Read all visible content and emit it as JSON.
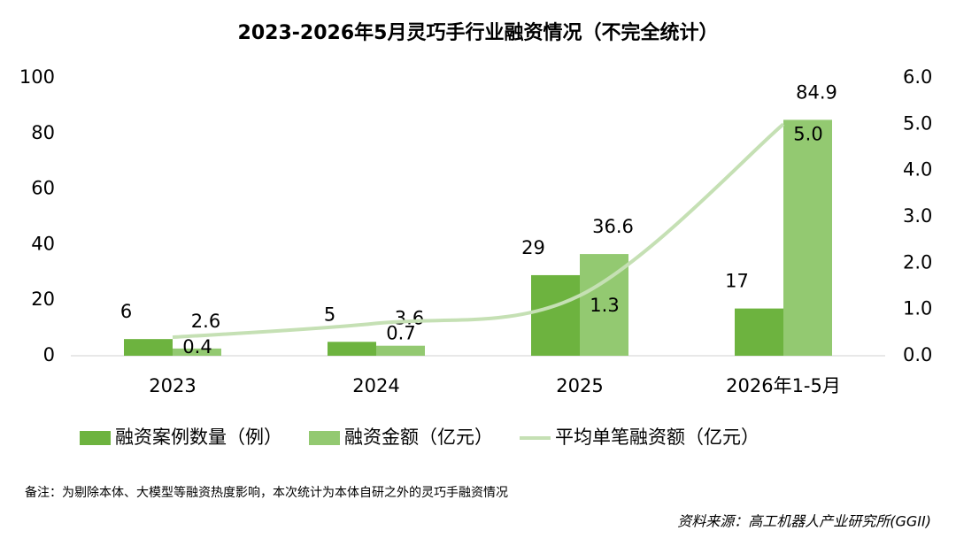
{
  "chart_data": {
    "type": "bar-line",
    "title": "2023-2026年5月灵巧手行业融资情况（不完全统计）",
    "categories": [
      "2023",
      "2024",
      "2025",
      "2026年1-5月"
    ],
    "series": [
      {
        "name": "融资案例数量（例）",
        "type": "bar",
        "color": "#6db33f",
        "values": [
          6,
          5,
          29,
          17
        ]
      },
      {
        "name": "融资金额（亿元）",
        "type": "bar",
        "color": "#93c971",
        "values": [
          2.6,
          3.6,
          36.6,
          84.9
        ]
      },
      {
        "name": "平均单笔融资额（亿元）",
        "type": "line",
        "axis": "y2",
        "color": "#c5e0b4",
        "values": [
          0.4,
          0.7,
          1.3,
          5.0
        ],
        "value_labels": [
          "0.4",
          "0.7",
          "1.3",
          "5.0"
        ]
      }
    ],
    "ylim": [
      0,
      100
    ],
    "yticks": [
      0,
      20,
      40,
      60,
      80,
      100
    ],
    "y2lim": [
      0,
      6
    ],
    "y2ticks": [
      {
        "value": 0,
        "label": "0.0"
      },
      {
        "value": 1,
        "label": "1.0"
      },
      {
        "value": 2,
        "label": "2.0"
      },
      {
        "value": 3,
        "label": "3.0"
      },
      {
        "value": 4,
        "label": "4.0"
      },
      {
        "value": 5,
        "label": "5.0"
      },
      {
        "value": 6,
        "label": "6.0"
      }
    ],
    "note": "备注：为剔除本体、大模型等融资热度影响，本次统计为本体自研之外的灵巧手融资情况",
    "source": "资料来源：高工机器人产业研究所(GGII)"
  }
}
